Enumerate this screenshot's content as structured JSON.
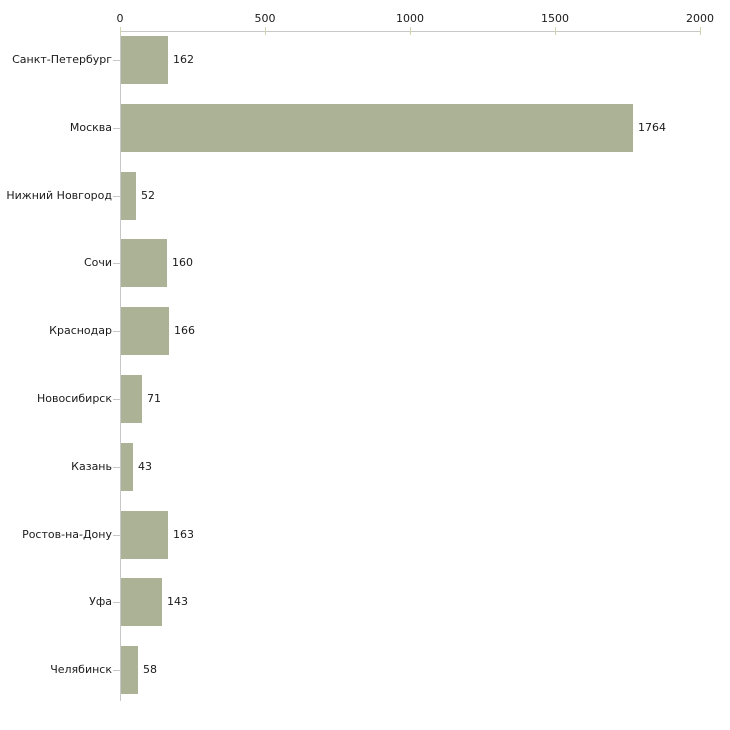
{
  "chart_data": {
    "type": "bar",
    "orientation": "horizontal",
    "categories": [
      "Санкт-Петербург",
      "Москва",
      "Нижний Новгород",
      "Сочи",
      "Краснодар",
      "Новосибирск",
      "Казань",
      "Ростов-на-Дону",
      "Уфа",
      "Челябинск"
    ],
    "values": [
      162,
      1764,
      52,
      160,
      166,
      71,
      43,
      163,
      143,
      58
    ],
    "x_ticks": [
      0,
      500,
      1000,
      1500,
      2000
    ],
    "xlim": [
      0,
      2000
    ],
    "grid": false,
    "legend": false,
    "value_labels_shown": true,
    "bar_color": "#acb295",
    "axis_color": "#c8c8c8",
    "tick_color": "#d2d4b0",
    "text_color": "#1a1a1a"
  }
}
